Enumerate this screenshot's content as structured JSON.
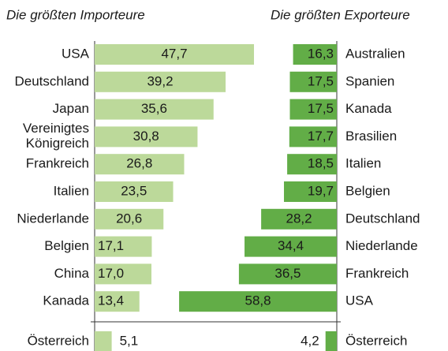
{
  "chart_data": [
    {
      "type": "bar",
      "title": "Die größten Importeure",
      "color": "#bcd99a",
      "categories": [
        "USA",
        "Deutschland",
        "Japan",
        "Vereinigtes\nKönigreich",
        "Frankreich",
        "Italien",
        "Niederlande",
        "Belgien",
        "China",
        "Kanada",
        "Österreich"
      ],
      "values": [
        47.7,
        39.2,
        35.6,
        30.8,
        26.8,
        23.5,
        20.6,
        17.1,
        17.0,
        13.4,
        5.1
      ],
      "value_labels": [
        "47,7",
        "39,2",
        "35,6",
        "30,8",
        "26,8",
        "23,5",
        "20,6",
        "17,1",
        "17,0",
        "13,4",
        "5,1"
      ]
    },
    {
      "type": "bar",
      "title": "Die größten Exporteure",
      "color": "#62ad47",
      "categories": [
        "Australien",
        "Spanien",
        "Kanada",
        "Brasilien",
        "Italien",
        "Belgien",
        "Deutschland",
        "Niederlande",
        "Frankreich",
        "USA",
        "Österreich"
      ],
      "values": [
        16.3,
        17.5,
        17.5,
        17.7,
        18.5,
        19.7,
        28.2,
        34.4,
        36.5,
        58.8,
        4.2
      ],
      "value_labels": [
        "16,3",
        "17,5",
        "17,5",
        "17,7",
        "18,5",
        "19,7",
        "28,2",
        "34,4",
        "36,5",
        "58,8",
        "4,2"
      ]
    }
  ]
}
